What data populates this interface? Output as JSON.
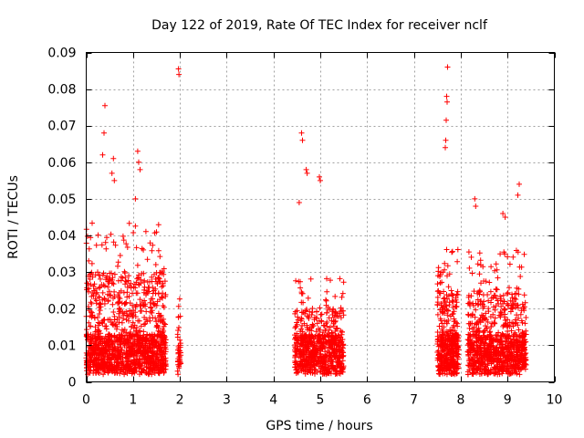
{
  "chart_data": {
    "type": "scatter",
    "title": "Day 122 of 2019, Rate Of TEC Index for receiver nclf",
    "xlabel": "GPS time / hours",
    "ylabel": "ROTI / TECUs",
    "xlim": [
      0,
      10
    ],
    "ylim": [
      0,
      0.09
    ],
    "grid": true,
    "marker": "+",
    "color": "#ff0000",
    "xticks": [
      0,
      1,
      2,
      3,
      4,
      5,
      6,
      7,
      8,
      9,
      10
    ],
    "yticks": [
      0,
      0.01,
      0.02,
      0.03,
      0.04,
      0.05,
      0.06,
      0.07,
      0.08,
      0.09
    ],
    "xtick_labels": [
      "0",
      "1",
      "2",
      "3",
      "4",
      "5",
      "6",
      "7",
      "8",
      "9",
      "10"
    ],
    "ytick_labels": [
      "0",
      "0.01",
      "0.02",
      "0.03",
      "0.04",
      "0.05",
      "0.06",
      "0.07",
      "0.08",
      "0.09"
    ],
    "clusters": [
      {
        "x_start": 0.0,
        "x_end": 1.7,
        "count": 1300,
        "typical_max": 0.03
      },
      {
        "x_start": 1.95,
        "x_end": 2.02,
        "count": 40,
        "typical_max": 0.018
      },
      {
        "x_start": 4.45,
        "x_end": 5.5,
        "count": 700,
        "typical_max": 0.02
      },
      {
        "x_start": 7.5,
        "x_end": 7.95,
        "count": 450,
        "typical_max": 0.025
      },
      {
        "x_start": 8.15,
        "x_end": 9.4,
        "count": 900,
        "typical_max": 0.025
      }
    ],
    "notable_points": [
      {
        "x": 0.4,
        "y": 0.0755
      },
      {
        "x": 0.38,
        "y": 0.068
      },
      {
        "x": 0.35,
        "y": 0.062
      },
      {
        "x": 0.55,
        "y": 0.057
      },
      {
        "x": 0.6,
        "y": 0.055
      },
      {
        "x": 0.58,
        "y": 0.061
      },
      {
        "x": 1.1,
        "y": 0.063
      },
      {
        "x": 1.12,
        "y": 0.06
      },
      {
        "x": 1.15,
        "y": 0.058
      },
      {
        "x": 1.05,
        "y": 0.05
      },
      {
        "x": 1.97,
        "y": 0.0855
      },
      {
        "x": 1.98,
        "y": 0.084
      },
      {
        "x": 4.6,
        "y": 0.068
      },
      {
        "x": 4.62,
        "y": 0.066
      },
      {
        "x": 4.7,
        "y": 0.058
      },
      {
        "x": 4.72,
        "y": 0.057
      },
      {
        "x": 4.55,
        "y": 0.049
      },
      {
        "x": 4.98,
        "y": 0.056
      },
      {
        "x": 5.0,
        "y": 0.055
      },
      {
        "x": 7.72,
        "y": 0.086
      },
      {
        "x": 7.7,
        "y": 0.078
      },
      {
        "x": 7.71,
        "y": 0.0765
      },
      {
        "x": 7.69,
        "y": 0.0715
      },
      {
        "x": 7.68,
        "y": 0.066
      },
      {
        "x": 7.67,
        "y": 0.064
      },
      {
        "x": 8.3,
        "y": 0.05
      },
      {
        "x": 8.32,
        "y": 0.048
      },
      {
        "x": 9.25,
        "y": 0.054
      },
      {
        "x": 9.22,
        "y": 0.051
      },
      {
        "x": 8.9,
        "y": 0.046
      },
      {
        "x": 8.95,
        "y": 0.045
      }
    ]
  }
}
